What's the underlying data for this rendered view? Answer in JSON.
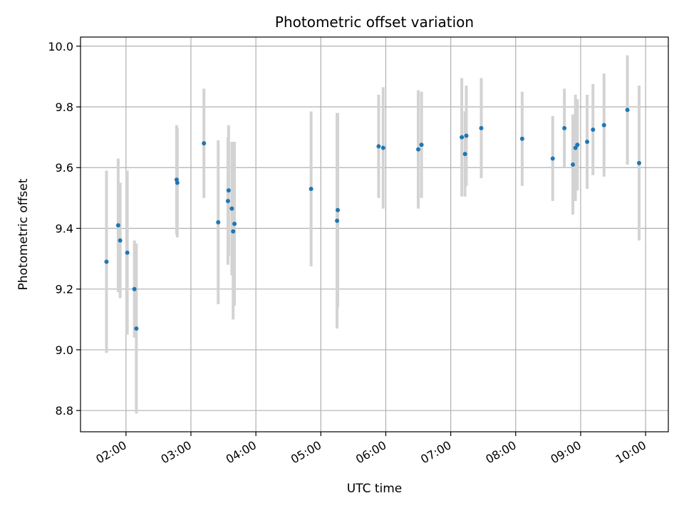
{
  "chart_data": {
    "type": "scatter",
    "title": "Photometric offset variation",
    "xlabel": "UTC time",
    "ylabel": "Photometric offset",
    "grid": true,
    "x_unit": "UTC time (hours, decimal)",
    "xlim": [
      1.3,
      10.35
    ],
    "ylim": [
      8.73,
      10.03
    ],
    "x_ticks": [
      2,
      3,
      4,
      5,
      6,
      7,
      8,
      9,
      10
    ],
    "x_tick_labels": [
      "02:00",
      "03:00",
      "04:00",
      "05:00",
      "06:00",
      "07:00",
      "08:00",
      "09:00",
      "10:00"
    ],
    "y_ticks": [
      8.8,
      9.0,
      9.2,
      9.4,
      9.6,
      9.8,
      10.0
    ],
    "y_tick_labels": [
      "8.8",
      "9.0",
      "9.2",
      "9.4",
      "9.6",
      "9.8",
      "10.0"
    ],
    "point_color": "#1f77b4",
    "errorbar_color": "#d3d3d3",
    "series": [
      {
        "points": [
          {
            "x": 1.7,
            "y": 9.29,
            "yerr": 0.3
          },
          {
            "x": 1.88,
            "y": 9.41,
            "yerr": 0.22
          },
          {
            "x": 1.91,
            "y": 9.36,
            "yerr": 0.19
          },
          {
            "x": 2.02,
            "y": 9.32,
            "yerr": 0.27
          },
          {
            "x": 2.13,
            "y": 9.2,
            "yerr": 0.16
          },
          {
            "x": 2.16,
            "y": 9.07,
            "yerr": 0.28
          },
          {
            "x": 2.78,
            "y": 9.56,
            "yerr": 0.18
          },
          {
            "x": 2.79,
            "y": 9.55,
            "yerr": 0.18
          },
          {
            "x": 3.2,
            "y": 9.68,
            "yerr": 0.18
          },
          {
            "x": 3.42,
            "y": 9.42,
            "yerr": 0.27
          },
          {
            "x": 3.57,
            "y": 9.49,
            "yerr": 0.21
          },
          {
            "x": 3.58,
            "y": 9.525,
            "yerr": 0.215
          },
          {
            "x": 3.63,
            "y": 9.465,
            "yerr": 0.22
          },
          {
            "x": 3.65,
            "y": 9.39,
            "yerr": 0.29
          },
          {
            "x": 3.67,
            "y": 9.415,
            "yerr": 0.27
          },
          {
            "x": 4.85,
            "y": 9.53,
            "yerr": 0.255
          },
          {
            "x": 5.25,
            "y": 9.425,
            "yerr": 0.355
          },
          {
            "x": 5.26,
            "y": 9.46,
            "yerr": 0.32
          },
          {
            "x": 5.89,
            "y": 9.67,
            "yerr": 0.17
          },
          {
            "x": 5.96,
            "y": 9.665,
            "yerr": 0.2
          },
          {
            "x": 6.5,
            "y": 9.66,
            "yerr": 0.195
          },
          {
            "x": 6.55,
            "y": 9.675,
            "yerr": 0.175
          },
          {
            "x": 7.17,
            "y": 9.7,
            "yerr": 0.195
          },
          {
            "x": 7.22,
            "y": 9.645,
            "yerr": 0.14
          },
          {
            "x": 7.24,
            "y": 9.705,
            "yerr": 0.165
          },
          {
            "x": 7.47,
            "y": 9.73,
            "yerr": 0.165
          },
          {
            "x": 8.1,
            "y": 9.695,
            "yerr": 0.155
          },
          {
            "x": 8.57,
            "y": 9.63,
            "yerr": 0.14
          },
          {
            "x": 8.75,
            "y": 9.73,
            "yerr": 0.13
          },
          {
            "x": 8.88,
            "y": 9.61,
            "yerr": 0.165
          },
          {
            "x": 8.92,
            "y": 9.665,
            "yerr": 0.175
          },
          {
            "x": 8.95,
            "y": 9.675,
            "yerr": 0.15
          },
          {
            "x": 9.1,
            "y": 9.685,
            "yerr": 0.155
          },
          {
            "x": 9.19,
            "y": 9.725,
            "yerr": 0.15
          },
          {
            "x": 9.36,
            "y": 9.74,
            "yerr": 0.17
          },
          {
            "x": 9.72,
            "y": 9.79,
            "yerr": 0.18
          },
          {
            "x": 9.9,
            "y": 9.615,
            "yerr": 0.255
          }
        ]
      }
    ]
  }
}
